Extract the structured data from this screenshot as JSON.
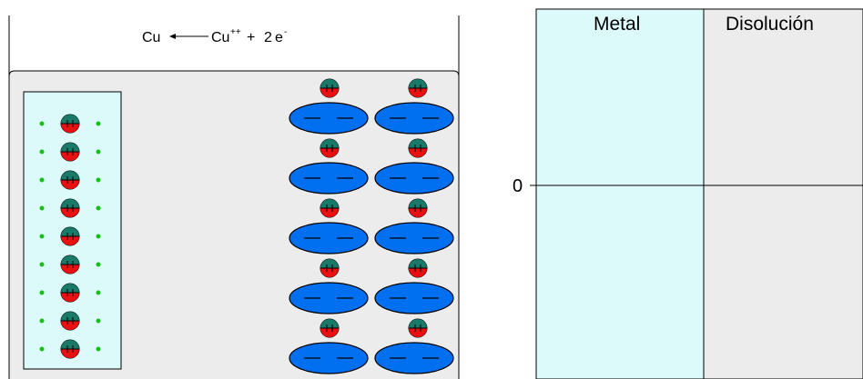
{
  "reaction": {
    "lhs": "Cu",
    "rhs_symbol": "Cu",
    "rhs_charge": "++",
    "plus": "+",
    "coef": "2",
    "electron": "e",
    "electron_charge": "-"
  },
  "graph": {
    "metal_label": "Metal",
    "solution_label": "Disolución",
    "zero_label": "0"
  },
  "colors": {
    "metal_fill": "#dcfafa",
    "solution_fill": "#ececec",
    "ion_top": "#1a7a6a",
    "ion_bottom": "#e81010",
    "electron_blue": "#0070f0",
    "electron_green": "#16c016"
  },
  "counts": {
    "metal_atoms": 9,
    "solution_ion_pairs": 10
  }
}
